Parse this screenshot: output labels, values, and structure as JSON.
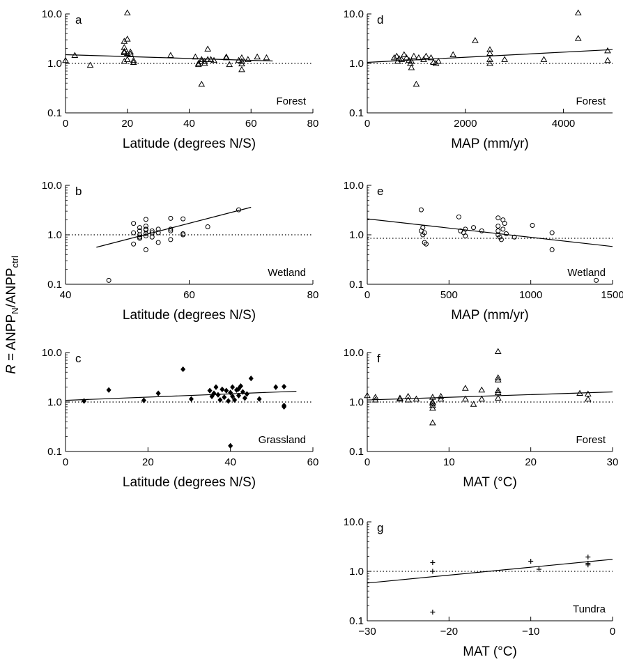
{
  "figure": {
    "ylabel": {
      "r": "R",
      "equals": " = ANPP",
      "sub_n": "N",
      "slash": "/ANPP",
      "sub_ctrl": "ctrl"
    },
    "colors": {
      "axis": "#000000",
      "marker": "#000000",
      "reference_line": "#000000"
    }
  },
  "chart_data": [
    {
      "panel": "a",
      "type": "scatter",
      "label": "Forest",
      "marker": "triangle",
      "xlabel": "Latitude (degrees N/S)",
      "xlim": [
        0,
        80
      ],
      "xticks": [
        0,
        20,
        40,
        60,
        80
      ],
      "yscale": "log",
      "ylim": [
        0.1,
        10
      ],
      "yticks": [
        0.1,
        1.0,
        10.0
      ],
      "yticklabels": [
        "0.1",
        "1.0",
        "10.0"
      ],
      "reference_line": 1.0,
      "fit": {
        "x": [
          0,
          67
        ],
        "y": [
          1.5,
          1.12
        ]
      },
      "points": [
        [
          0,
          1.15
        ],
        [
          3,
          1.45
        ],
        [
          8,
          0.92
        ],
        [
          19,
          1.1
        ],
        [
          19,
          1.65
        ],
        [
          19,
          1.75
        ],
        [
          19,
          2.1
        ],
        [
          19,
          2.8
        ],
        [
          20,
          10.5
        ],
        [
          20,
          1.6
        ],
        [
          20,
          3.1
        ],
        [
          20,
          1.2
        ],
        [
          21,
          1.7
        ],
        [
          21,
          1.55
        ],
        [
          22,
          1.15
        ],
        [
          22,
          1.05
        ],
        [
          34,
          1.45
        ],
        [
          42,
          1.35
        ],
        [
          43,
          1.0
        ],
        [
          43,
          0.95
        ],
        [
          44,
          0.38
        ],
        [
          44,
          1.2
        ],
        [
          44,
          1.1
        ],
        [
          45,
          1.0
        ],
        [
          45,
          1.1
        ],
        [
          46,
          1.2
        ],
        [
          46,
          1.95
        ],
        [
          47,
          1.2
        ],
        [
          48,
          1.15
        ],
        [
          52,
          1.35
        ],
        [
          52,
          1.3
        ],
        [
          53,
          0.95
        ],
        [
          56,
          1.15
        ],
        [
          57,
          1.3
        ],
        [
          57,
          1.1
        ],
        [
          57,
          0.98
        ],
        [
          57,
          0.75
        ],
        [
          59,
          1.2
        ],
        [
          62,
          1.35
        ],
        [
          65,
          1.3
        ]
      ]
    },
    {
      "panel": "b",
      "type": "scatter",
      "label": "Wetland",
      "marker": "circle",
      "xlabel": "Latitude (degrees N/S)",
      "xlim": [
        40,
        80
      ],
      "xticks": [
        40,
        60,
        80
      ],
      "yscale": "log",
      "ylim": [
        0.1,
        10
      ],
      "yticks": [
        0.1,
        1.0,
        10.0
      ],
      "yticklabels": [
        "0.1",
        "1.0",
        "10.0"
      ],
      "reference_line": 1.0,
      "fit": {
        "x": [
          45,
          70
        ],
        "y": [
          0.56,
          3.6
        ]
      },
      "points": [
        [
          47,
          0.12
        ],
        [
          51,
          0.65
        ],
        [
          51,
          1.1
        ],
        [
          51,
          1.7
        ],
        [
          52,
          1.2
        ],
        [
          52,
          1.0
        ],
        [
          52,
          0.9
        ],
        [
          52,
          1.4
        ],
        [
          52,
          0.85
        ],
        [
          53,
          1.25
        ],
        [
          53,
          1.05
        ],
        [
          53,
          0.95
        ],
        [
          53,
          1.5
        ],
        [
          53,
          2.05
        ],
        [
          53,
          1.3
        ],
        [
          53,
          0.5
        ],
        [
          54,
          1.1
        ],
        [
          54,
          1.2
        ],
        [
          54,
          0.9
        ],
        [
          55,
          1.3
        ],
        [
          55,
          1.1
        ],
        [
          55,
          0.7
        ],
        [
          57,
          1.3
        ],
        [
          57,
          2.15
        ],
        [
          57,
          0.8
        ],
        [
          57,
          1.2
        ],
        [
          59,
          1.0
        ],
        [
          59,
          1.05
        ],
        [
          59,
          2.1
        ],
        [
          63,
          1.45
        ],
        [
          68,
          3.2
        ]
      ]
    },
    {
      "panel": "c",
      "type": "scatter",
      "label": "Grassland",
      "marker": "diamond",
      "xlabel": "Latitude (degrees N/S)",
      "xlim": [
        0,
        60
      ],
      "xticks": [
        0,
        20,
        40,
        60
      ],
      "yscale": "log",
      "ylim": [
        0.1,
        10
      ],
      "yticks": [
        0.1,
        1.0,
        10.0
      ],
      "yticklabels": [
        "0.1",
        "1.0",
        "10.0"
      ],
      "reference_line": 1.0,
      "fit": {
        "x": [
          0,
          56
        ],
        "y": [
          1.08,
          1.65
        ]
      },
      "points": [
        [
          4.5,
          1.05
        ],
        [
          10.5,
          1.75
        ],
        [
          19,
          1.08
        ],
        [
          22.5,
          1.5
        ],
        [
          28.5,
          4.6
        ],
        [
          30.5,
          1.15
        ],
        [
          35,
          1.7
        ],
        [
          35.5,
          1.3
        ],
        [
          36,
          1.5
        ],
        [
          36.5,
          2.0
        ],
        [
          37,
          1.4
        ],
        [
          37.5,
          1.1
        ],
        [
          38,
          1.8
        ],
        [
          38.5,
          1.25
        ],
        [
          39,
          1.7
        ],
        [
          39.5,
          1.05
        ],
        [
          40,
          1.55
        ],
        [
          40,
          0.13
        ],
        [
          40.5,
          1.3
        ],
        [
          40.5,
          2.0
        ],
        [
          41,
          1.1
        ],
        [
          41.5,
          1.75
        ],
        [
          42,
          1.85
        ],
        [
          42,
          1.35
        ],
        [
          42.5,
          2.1
        ],
        [
          43,
          1.6
        ],
        [
          43.5,
          1.2
        ],
        [
          44,
          1.45
        ],
        [
          45,
          3.0
        ],
        [
          47,
          1.15
        ],
        [
          51,
          2.0
        ],
        [
          53,
          2.05
        ],
        [
          53,
          0.85
        ],
        [
          53,
          0.8
        ]
      ]
    },
    {
      "panel": "d",
      "type": "scatter",
      "label": "Forest",
      "marker": "triangle",
      "xlabel": "MAP (mm/yr)",
      "xlim": [
        0,
        5000
      ],
      "xticks": [
        0,
        2000,
        4000
      ],
      "xtick_labels_at": [
        0,
        2000,
        4000
      ],
      "yscale": "log",
      "ylim": [
        0.1,
        10
      ],
      "yticks": [
        0.1,
        1.0,
        10.0
      ],
      "yticklabels": [
        "0.1",
        "1.0",
        "10.0"
      ],
      "reference_line": 1.0,
      "fit": {
        "x": [
          0,
          5000
        ],
        "y": [
          1.05,
          1.9
        ]
      },
      "points": [
        [
          550,
          1.3
        ],
        [
          600,
          1.4
        ],
        [
          620,
          1.1
        ],
        [
          650,
          1.25
        ],
        [
          700,
          1.2
        ],
        [
          750,
          1.5
        ],
        [
          800,
          1.3
        ],
        [
          850,
          1.15
        ],
        [
          880,
          1.0
        ],
        [
          900,
          0.82
        ],
        [
          900,
          1.1
        ],
        [
          950,
          1.4
        ],
        [
          1000,
          0.38
        ],
        [
          1050,
          1.3
        ],
        [
          1150,
          1.2
        ],
        [
          1200,
          1.4
        ],
        [
          1300,
          1.3
        ],
        [
          1350,
          1.05
        ],
        [
          1400,
          1.0
        ],
        [
          1450,
          1.1
        ],
        [
          1750,
          1.5
        ],
        [
          2200,
          2.9
        ],
        [
          2500,
          1.9
        ],
        [
          2500,
          1.6
        ],
        [
          2500,
          1.2
        ],
        [
          2500,
          1.0
        ],
        [
          2800,
          1.2
        ],
        [
          3600,
          1.2
        ],
        [
          4300,
          10.5
        ],
        [
          4300,
          3.2
        ],
        [
          4900,
          1.8
        ],
        [
          4900,
          1.15
        ]
      ]
    },
    {
      "panel": "e",
      "type": "scatter",
      "label": "Wetland",
      "marker": "circle",
      "xlabel": "MAP (mm/yr)",
      "xlim": [
        0,
        1500
      ],
      "xticks": [
        0,
        500,
        1000,
        1500
      ],
      "yscale": "log",
      "ylim": [
        0.1,
        10
      ],
      "yticks": [
        0.1,
        1.0,
        10.0
      ],
      "yticklabels": [
        "0.1",
        "1.0",
        "10.0"
      ],
      "reference_line": 0.85,
      "fit": {
        "x": [
          0,
          1500
        ],
        "y": [
          2.1,
          0.58
        ]
      },
      "points": [
        [
          330,
          3.2
        ],
        [
          330,
          1.2
        ],
        [
          340,
          1.4
        ],
        [
          340,
          1.0
        ],
        [
          350,
          1.1
        ],
        [
          350,
          0.7
        ],
        [
          360,
          0.65
        ],
        [
          560,
          2.3
        ],
        [
          570,
          1.2
        ],
        [
          590,
          1.1
        ],
        [
          600,
          1.3
        ],
        [
          600,
          0.95
        ],
        [
          650,
          1.4
        ],
        [
          700,
          1.2
        ],
        [
          800,
          2.2
        ],
        [
          800,
          1.5
        ],
        [
          800,
          1.2
        ],
        [
          800,
          1.0
        ],
        [
          810,
          0.9
        ],
        [
          820,
          0.8
        ],
        [
          830,
          2.0
        ],
        [
          830,
          1.3
        ],
        [
          840,
          1.7
        ],
        [
          850,
          1.05
        ],
        [
          900,
          0.9
        ],
        [
          1010,
          1.55
        ],
        [
          1130,
          1.1
        ],
        [
          1130,
          0.5
        ],
        [
          1400,
          0.12
        ]
      ]
    },
    {
      "panel": "f",
      "type": "scatter",
      "label": "Forest",
      "marker": "triangle",
      "xlabel": "MAT (°C)",
      "xlim": [
        0,
        30
      ],
      "xticks": [
        0,
        10,
        20,
        30
      ],
      "yscale": "log",
      "ylim": [
        0.1,
        10
      ],
      "yticks": [
        0.1,
        1.0,
        10.0
      ],
      "yticklabels": [
        "0.1",
        "1.0",
        "10.0"
      ],
      "reference_line": 1.0,
      "fit": {
        "x": [
          0,
          30
        ],
        "y": [
          1.1,
          1.6
        ]
      },
      "points": [
        [
          0,
          1.35
        ],
        [
          1,
          1.25
        ],
        [
          1,
          1.1
        ],
        [
          4,
          1.15
        ],
        [
          4,
          1.2
        ],
        [
          5,
          1.3
        ],
        [
          5,
          1.1
        ],
        [
          6,
          1.15
        ],
        [
          8,
          1.25
        ],
        [
          8,
          1.0
        ],
        [
          8,
          0.95
        ],
        [
          8,
          0.85
        ],
        [
          8,
          0.75
        ],
        [
          8,
          0.38
        ],
        [
          9,
          1.3
        ],
        [
          9,
          1.15
        ],
        [
          12,
          1.9
        ],
        [
          12,
          1.15
        ],
        [
          13,
          0.9
        ],
        [
          14,
          1.75
        ],
        [
          14,
          1.15
        ],
        [
          16,
          10.5
        ],
        [
          16,
          3.1
        ],
        [
          16,
          2.8
        ],
        [
          16,
          1.7
        ],
        [
          16,
          1.55
        ],
        [
          16,
          1.2
        ],
        [
          26,
          1.5
        ],
        [
          27,
          1.45
        ],
        [
          27,
          1.15
        ]
      ]
    },
    {
      "panel": "g",
      "type": "scatter",
      "label": "Tundra",
      "marker": "plus",
      "xlabel": "MAT (°C)",
      "xlim": [
        -30,
        0
      ],
      "xticks": [
        -30,
        -20,
        -10,
        0
      ],
      "xticklabels": [
        "−30",
        "−20",
        "−10",
        "0"
      ],
      "yscale": "log",
      "ylim": [
        0.1,
        10
      ],
      "yticks": [
        0.1,
        1.0,
        10.0
      ],
      "yticklabels": [
        "0.1",
        "1.0",
        "10.0"
      ],
      "reference_line": 1.0,
      "fit": {
        "x": [
          -30,
          0
        ],
        "y": [
          0.58,
          1.75
        ]
      },
      "points": [
        [
          -22,
          1.5
        ],
        [
          -22,
          1.0
        ],
        [
          -22,
          0.15
        ],
        [
          -10,
          1.6
        ],
        [
          -9,
          1.1
        ],
        [
          -3,
          1.95
        ],
        [
          -3,
          1.45
        ],
        [
          -3,
          1.35
        ]
      ]
    }
  ]
}
